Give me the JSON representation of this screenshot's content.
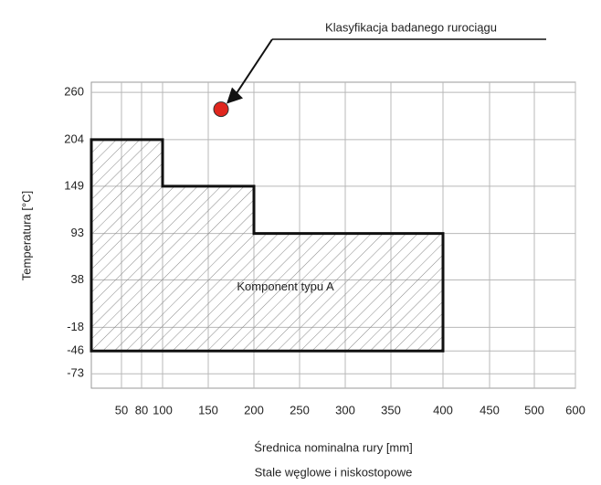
{
  "chart_data": {
    "type": "step-region",
    "annotation": "Klasyfikacja badanego rurociągu",
    "ylabel": "Temperatura [°C]",
    "xlabel": "Średnica nominalna rury [mm]",
    "subtitle": "Stale węglowe i niskostopowe",
    "xlim": [
      20,
      600
    ],
    "ylim": [
      -90,
      272
    ],
    "xticks": [
      50,
      80,
      100,
      150,
      200,
      250,
      300,
      350,
      400,
      450,
      500,
      600
    ],
    "yticks": [
      260,
      204,
      149,
      93,
      38,
      -18,
      -46,
      -73
    ],
    "grid": true,
    "region": {
      "label": "Komponent typu A",
      "x_ends": [
        100,
        200,
        400
      ],
      "top": [
        204,
        149,
        93
      ],
      "bottom": -46,
      "color": "#111"
    },
    "point": {
      "x": 164,
      "y": 240,
      "color": "#e0261e"
    }
  }
}
